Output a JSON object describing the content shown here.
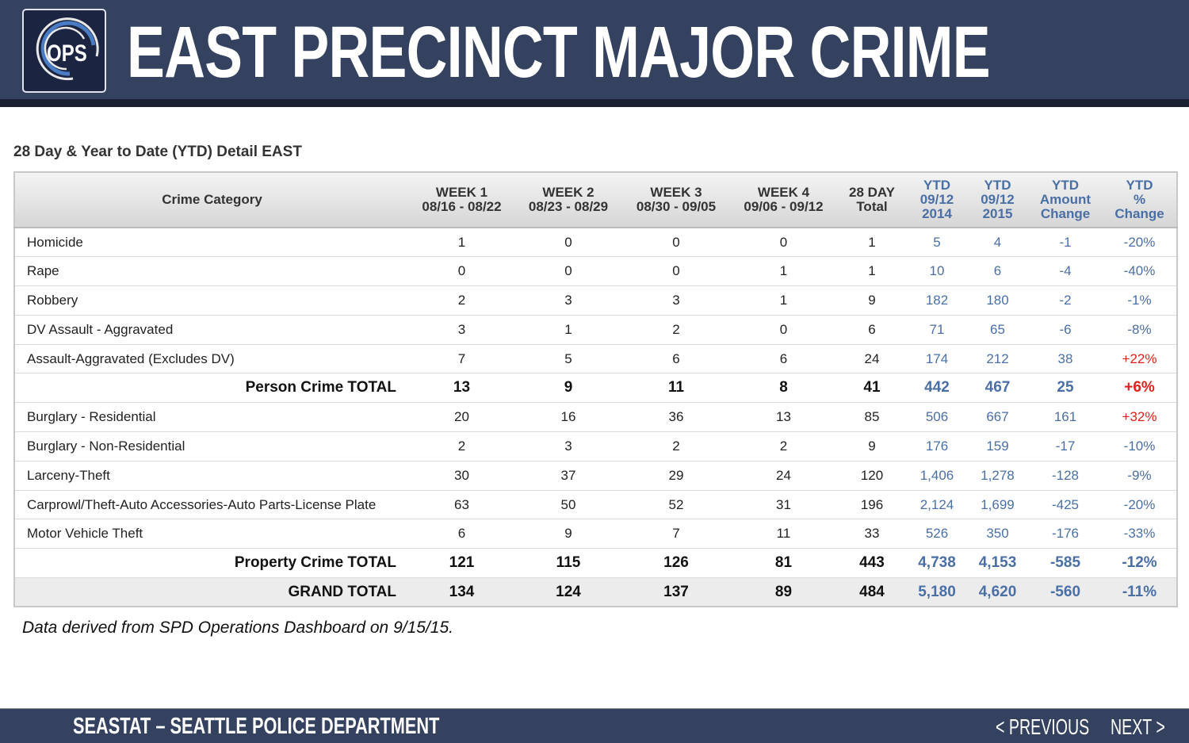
{
  "header": {
    "logo_text": "OPS",
    "title": "EAST PRECINCT MAJOR CRIME"
  },
  "subtitle": "28 Day & Year to Date (YTD) Detail EAST",
  "columns": [
    {
      "l1": "Crime Category",
      "l2": "",
      "l3": ""
    },
    {
      "l1": "WEEK 1",
      "l2": "08/16 - 08/22",
      "l3": ""
    },
    {
      "l1": "WEEK 2",
      "l2": "08/23 - 08/29",
      "l3": ""
    },
    {
      "l1": "WEEK 3",
      "l2": "08/30 - 09/05",
      "l3": ""
    },
    {
      "l1": "WEEK 4",
      "l2": "09/06 - 09/12",
      "l3": ""
    },
    {
      "l1": "28 DAY",
      "l2": "Total",
      "l3": ""
    },
    {
      "l1": "YTD",
      "l2": "09/12",
      "l3": "2014"
    },
    {
      "l1": "YTD",
      "l2": "09/12",
      "l3": "2015"
    },
    {
      "l1": "YTD",
      "l2": "Amount",
      "l3": "Change"
    },
    {
      "l1": "YTD",
      "l2": "%",
      "l3": "Change"
    }
  ],
  "rows": [
    {
      "type": "row",
      "c": [
        "Homicide",
        "1",
        "0",
        "0",
        "0",
        "1",
        "5",
        "4",
        "-1",
        "-20%"
      ]
    },
    {
      "type": "row",
      "c": [
        "Rape",
        "0",
        "0",
        "0",
        "1",
        "1",
        "10",
        "6",
        "-4",
        "-40%"
      ]
    },
    {
      "type": "row",
      "c": [
        "Robbery",
        "2",
        "3",
        "3",
        "1",
        "9",
        "182",
        "180",
        "-2",
        "-1%"
      ]
    },
    {
      "type": "row",
      "c": [
        "DV Assault - Aggravated",
        "3",
        "1",
        "2",
        "0",
        "6",
        "71",
        "65",
        "-6",
        "-8%"
      ]
    },
    {
      "type": "row",
      "c": [
        "Assault-Aggravated (Excludes DV)",
        "7",
        "5",
        "6",
        "6",
        "24",
        "174",
        "212",
        "38",
        "+22%"
      ]
    },
    {
      "type": "tot",
      "c": [
        "Person Crime TOTAL",
        "13",
        "9",
        "11",
        "8",
        "41",
        "442",
        "467",
        "25",
        "+6%"
      ]
    },
    {
      "type": "row",
      "c": [
        "Burglary - Residential",
        "20",
        "16",
        "36",
        "13",
        "85",
        "506",
        "667",
        "161",
        "+32%"
      ]
    },
    {
      "type": "row",
      "c": [
        "Burglary - Non-Residential",
        "2",
        "3",
        "2",
        "2",
        "9",
        "176",
        "159",
        "-17",
        "-10%"
      ]
    },
    {
      "type": "row",
      "c": [
        "Larceny-Theft",
        "30",
        "37",
        "29",
        "24",
        "120",
        "1,406",
        "1,278",
        "-128",
        "-9%"
      ]
    },
    {
      "type": "row",
      "c": [
        "Carprowl/Theft-Auto Accessories-Auto Parts-License Plate",
        "63",
        "50",
        "52",
        "31",
        "196",
        "2,124",
        "1,699",
        "-425",
        "-20%"
      ]
    },
    {
      "type": "row",
      "c": [
        "Motor Vehicle Theft",
        "6",
        "9",
        "7",
        "11",
        "33",
        "526",
        "350",
        "-176",
        "-33%"
      ]
    },
    {
      "type": "tot",
      "c": [
        "Property Crime TOTAL",
        "121",
        "115",
        "126",
        "81",
        "443",
        "4,738",
        "4,153",
        "-585",
        "-12%"
      ]
    },
    {
      "type": "grand",
      "c": [
        "GRAND TOTAL",
        "134",
        "124",
        "137",
        "89",
        "484",
        "5,180",
        "4,620",
        "-560",
        "-11%"
      ]
    }
  ],
  "colors": {
    "header_bg": "#344260",
    "ytd_blue": "#4a6fa5",
    "increase_red": "#e0201a"
  },
  "note": "Data derived from SPD Operations Dashboard on 9/15/15.",
  "footer": {
    "title": "SEASTAT – SEATTLE POLICE DEPARTMENT",
    "previous": "< PREVIOUS",
    "next": "NEXT >"
  }
}
